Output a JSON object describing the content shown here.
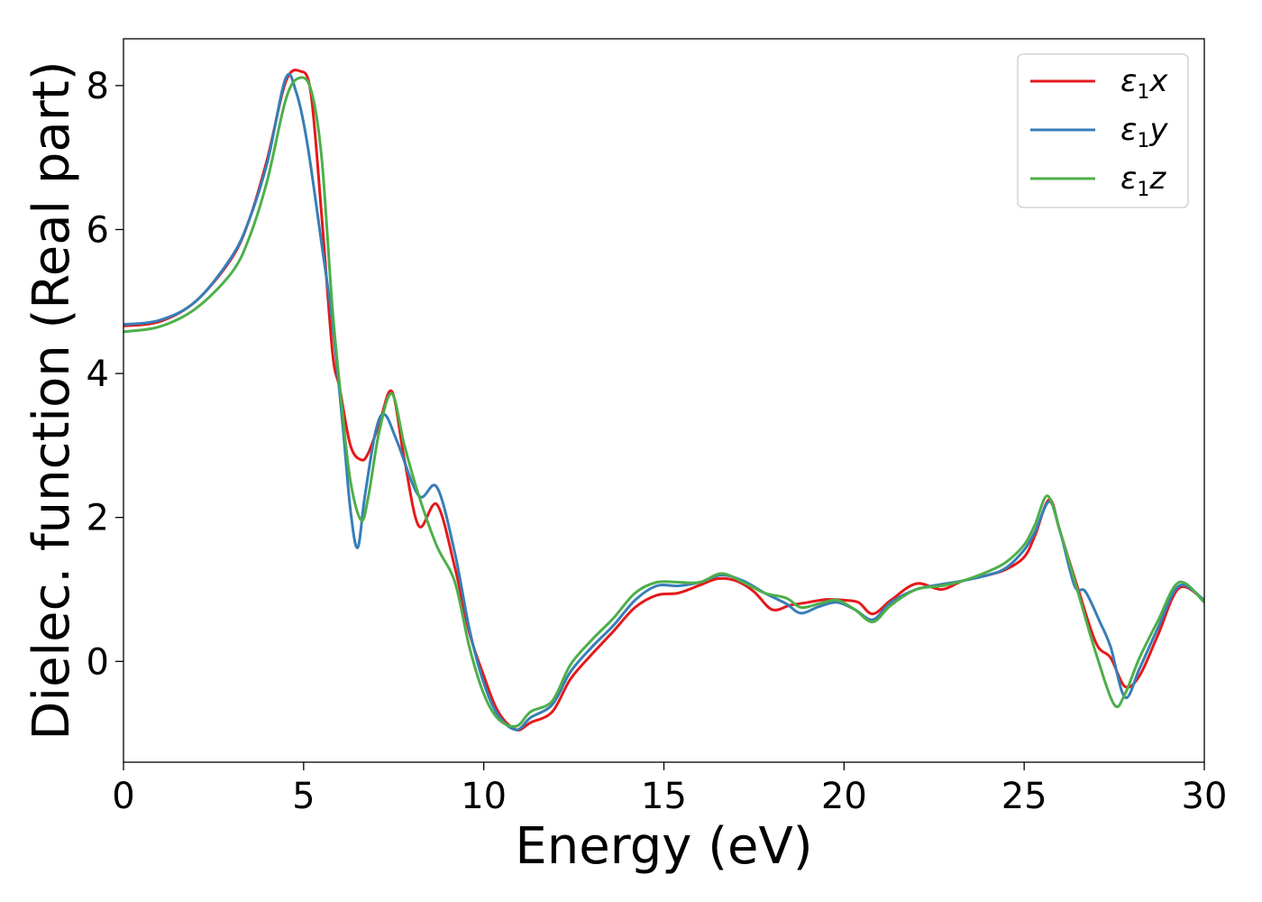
{
  "chart_data": {
    "type": "line",
    "xlabel": "Energy (eV)",
    "ylabel": "Dielec. function (Real part)",
    "xlim": [
      0,
      30
    ],
    "ylim": [
      -1.4,
      8.65
    ],
    "xticks": [
      0,
      5,
      10,
      15,
      20,
      25,
      30
    ],
    "xtick_labels": [
      "0",
      "5",
      "10",
      "15",
      "20",
      "25",
      "30"
    ],
    "yticks": [
      0,
      2,
      4,
      6,
      8
    ],
    "ytick_labels": [
      "0",
      "2",
      "4",
      "6",
      "8"
    ],
    "grid": false,
    "legend_position": "top-right",
    "series": [
      {
        "name": "ε1x",
        "legend": {
          "base": "ε",
          "sub": "1",
          "suffix": "x"
        },
        "color": "#e41a1c",
        "x": [
          0,
          1,
          2,
          3,
          3.5,
          4,
          4.5,
          4.9,
          5.2,
          5.5,
          5.8,
          6.0,
          6.3,
          6.6,
          6.8,
          7.1,
          7.45,
          7.8,
          8.2,
          8.7,
          9.2,
          9.6,
          10.0,
          10.4,
          10.9,
          11.3,
          11.9,
          12.4,
          13.0,
          13.6,
          14.2,
          14.8,
          15.4,
          16.0,
          16.5,
          17.0,
          17.5,
          18.0,
          18.5,
          19.0,
          19.5,
          20.0,
          20.4,
          20.8,
          21.3,
          22.0,
          22.7,
          23.3,
          24.0,
          24.5,
          25.0,
          25.3,
          25.7,
          26.0,
          26.5,
          27.0,
          27.4,
          27.8,
          28.2,
          28.7,
          29.3,
          30.0
        ],
        "values": [
          4.66,
          4.72,
          5.0,
          5.6,
          6.15,
          7.0,
          8.05,
          8.2,
          7.9,
          6.2,
          4.3,
          3.8,
          3.0,
          2.8,
          2.9,
          3.3,
          3.75,
          2.8,
          1.88,
          2.18,
          1.3,
          0.4,
          -0.2,
          -0.7,
          -0.95,
          -0.85,
          -0.7,
          -0.25,
          0.1,
          0.42,
          0.75,
          0.92,
          0.95,
          1.06,
          1.15,
          1.12,
          0.97,
          0.72,
          0.78,
          0.82,
          0.86,
          0.85,
          0.82,
          0.66,
          0.85,
          1.08,
          1.0,
          1.12,
          1.2,
          1.28,
          1.45,
          1.75,
          2.25,
          1.8,
          1.0,
          0.25,
          0.05,
          -0.35,
          -0.2,
          0.35,
          1.02,
          0.85
        ]
      },
      {
        "name": "ε1y",
        "legend": {
          "base": "ε",
          "sub": "1",
          "suffix": "y"
        },
        "color": "#377eb8",
        "x": [
          0,
          1,
          2,
          3,
          3.5,
          4,
          4.5,
          4.8,
          5.1,
          5.5,
          5.8,
          6.1,
          6.3,
          6.5,
          6.7,
          7.0,
          7.25,
          7.6,
          8.2,
          8.7,
          9.2,
          9.6,
          10.0,
          10.4,
          10.9,
          11.3,
          11.9,
          12.4,
          13.0,
          13.6,
          14.2,
          14.8,
          15.4,
          16.0,
          16.6,
          17.2,
          17.8,
          18.4,
          18.8,
          19.3,
          19.8,
          20.3,
          20.8,
          21.3,
          22.0,
          22.7,
          23.3,
          24.0,
          24.5,
          25.0,
          25.3,
          25.7,
          26.0,
          26.4,
          26.7,
          27.1,
          27.4,
          27.8,
          28.2,
          28.7,
          29.3,
          30.0
        ],
        "values": [
          4.68,
          4.74,
          5.0,
          5.62,
          6.15,
          6.95,
          8.1,
          7.9,
          7.2,
          5.8,
          4.7,
          3.2,
          2.1,
          1.58,
          2.3,
          3.2,
          3.43,
          3.05,
          2.3,
          2.42,
          1.5,
          0.45,
          -0.3,
          -0.75,
          -0.95,
          -0.78,
          -0.6,
          -0.15,
          0.2,
          0.5,
          0.85,
          1.05,
          1.05,
          1.1,
          1.2,
          1.12,
          0.95,
          0.8,
          0.67,
          0.76,
          0.82,
          0.72,
          0.58,
          0.82,
          1.0,
          1.07,
          1.12,
          1.2,
          1.3,
          1.55,
          1.8,
          2.22,
          1.8,
          1.05,
          0.97,
          0.55,
          0.2,
          -0.5,
          -0.1,
          0.45,
          1.05,
          0.85
        ]
      },
      {
        "name": "ε1z",
        "legend": {
          "base": "ε",
          "sub": "1",
          "suffix": "z"
        },
        "color": "#4daf4a",
        "x": [
          0,
          1,
          2,
          3,
          3.5,
          4,
          4.5,
          4.85,
          5.2,
          5.5,
          5.8,
          6.05,
          6.3,
          6.6,
          6.8,
          7.1,
          7.45,
          7.8,
          8.2,
          8.7,
          9.2,
          9.6,
          10.0,
          10.4,
          10.9,
          11.3,
          11.9,
          12.4,
          13.0,
          13.6,
          14.2,
          14.8,
          15.4,
          16.0,
          16.6,
          17.2,
          17.8,
          18.4,
          18.8,
          19.3,
          19.8,
          20.3,
          20.8,
          21.3,
          22.0,
          22.7,
          23.3,
          24.0,
          24.5,
          25.0,
          25.3,
          25.65,
          26.0,
          26.5,
          27.0,
          27.5,
          27.8,
          28.2,
          28.7,
          29.3,
          30.0
        ],
        "values": [
          4.58,
          4.65,
          4.9,
          5.4,
          5.9,
          6.7,
          7.8,
          8.1,
          7.95,
          7.0,
          4.9,
          3.6,
          2.5,
          1.96,
          2.3,
          3.2,
          3.72,
          3.0,
          2.3,
          1.6,
          1.1,
          0.2,
          -0.45,
          -0.8,
          -0.9,
          -0.7,
          -0.55,
          -0.05,
          0.3,
          0.6,
          0.95,
          1.1,
          1.1,
          1.1,
          1.22,
          1.1,
          0.95,
          0.88,
          0.75,
          0.8,
          0.85,
          0.72,
          0.55,
          0.78,
          1.0,
          1.05,
          1.12,
          1.25,
          1.38,
          1.62,
          1.9,
          2.3,
          1.8,
          0.95,
          0.1,
          -0.6,
          -0.45,
          0.05,
          0.55,
          1.1,
          0.82
        ]
      }
    ]
  }
}
